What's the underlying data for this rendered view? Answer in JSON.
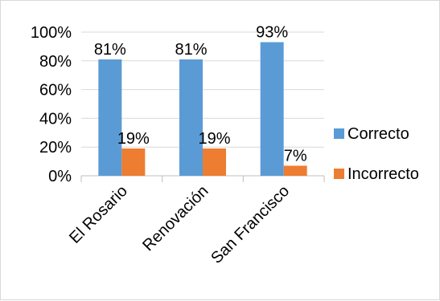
{
  "chart_data": {
    "type": "bar",
    "categories": [
      "El Rosario",
      "Renovación",
      "San Francisco"
    ],
    "series": [
      {
        "name": "Correcto",
        "values": [
          81,
          81,
          93
        ],
        "labels": [
          "81%",
          "81%",
          "93%"
        ],
        "color": "#5b9bd5"
      },
      {
        "name": "Incorrecto",
        "values": [
          19,
          19,
          7
        ],
        "labels": [
          "19%",
          "19%",
          "7%"
        ],
        "color": "#ed7d31"
      }
    ],
    "y_ticks": [
      "0%",
      "20%",
      "40%",
      "60%",
      "80%",
      "100%"
    ],
    "ylim": [
      0,
      100
    ],
    "grid": true,
    "legend_position": "right"
  }
}
